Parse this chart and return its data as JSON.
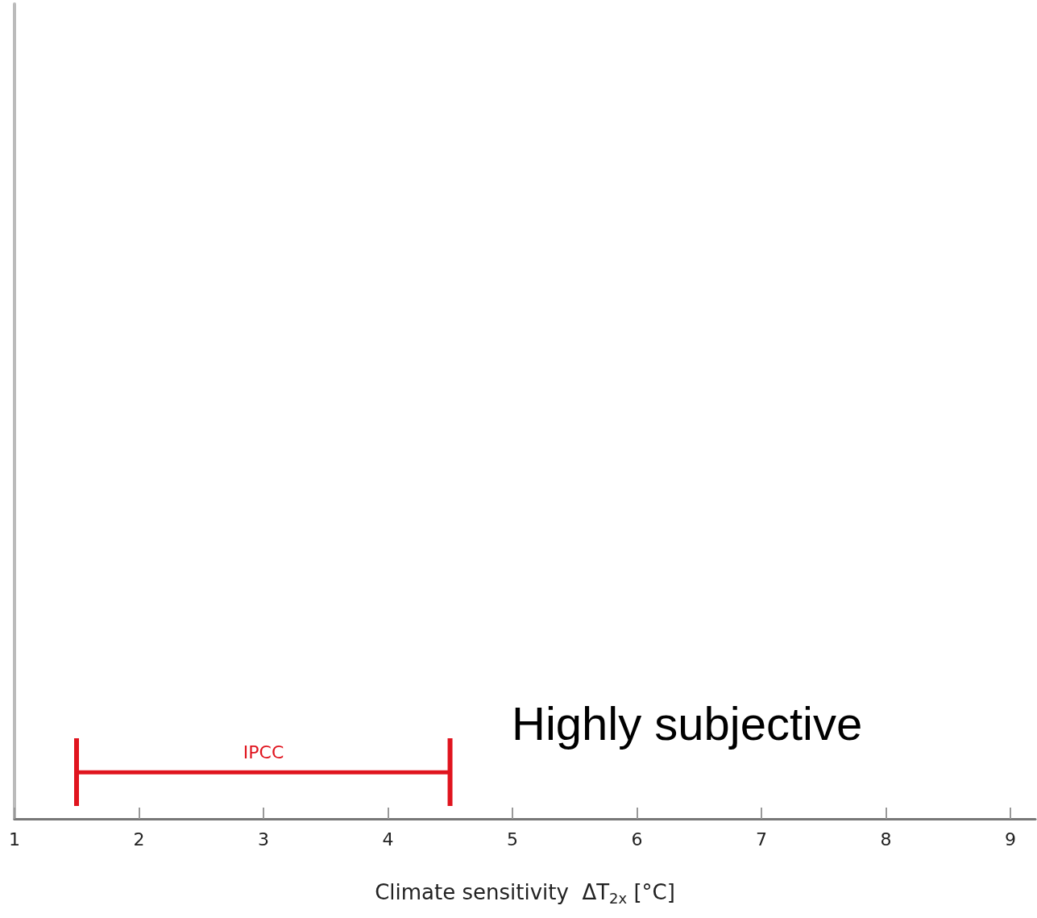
{
  "chart_data": {
    "type": "bar",
    "orientation": "horizontal",
    "categories": [
      "IPCC"
    ],
    "base": [
      1.5
    ],
    "values": [
      3
    ],
    "color": "#e0141e",
    "xlim": [
      1,
      9.2
    ],
    "xticks": [
      1,
      2,
      3,
      4,
      5,
      6,
      7,
      8,
      9
    ],
    "xlabel": "Climate sensitivity  ΔT$_{2x}$ [°C]",
    "annotations": [
      "Highly subjective"
    ],
    "grid": false
  }
}
